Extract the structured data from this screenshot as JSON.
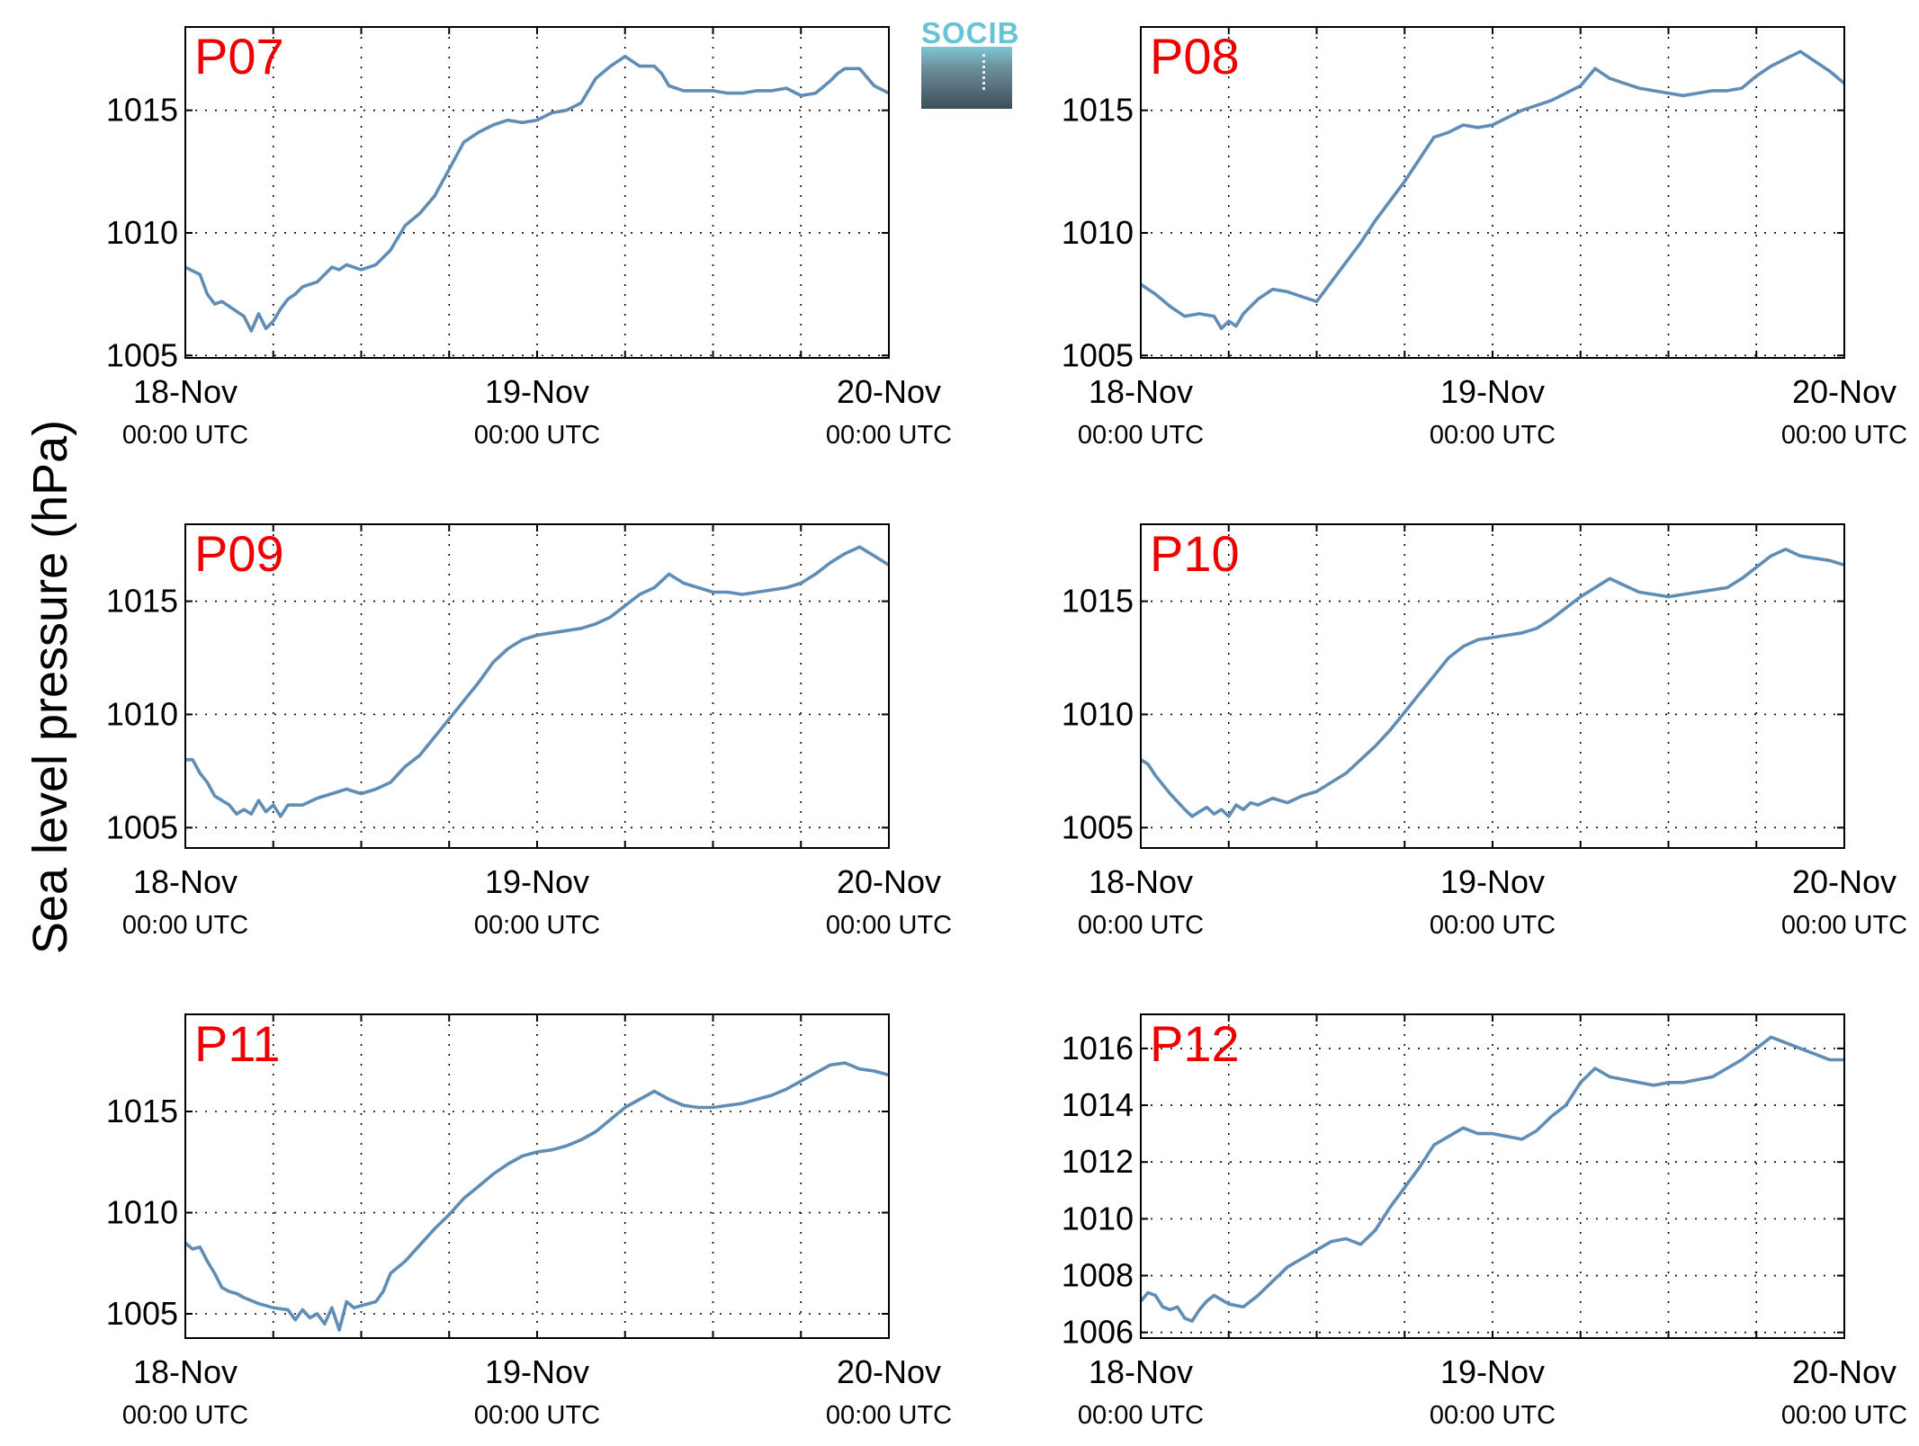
{
  "figure": {
    "ylabel": "Sea level pressure (hPa)",
    "logo_text": "SOCIB",
    "line_color": "#5f8db5",
    "title_color": "#ee0000"
  },
  "chart_data": [
    {
      "type": "line",
      "title": "P07",
      "xlabel": "",
      "ylabel": "Sea level pressure (hPa)",
      "x_unit": "hours since 18-Nov 00:00 UTC",
      "xlim": [
        0,
        48
      ],
      "xticks": [
        0,
        24,
        48
      ],
      "xticklabels": [
        [
          "18-Nov",
          "00:00 UTC"
        ],
        [
          "19-Nov",
          "00:00 UTC"
        ],
        [
          "20-Nov",
          "00:00 UTC"
        ]
      ],
      "ylim": [
        1004.9,
        1018.4
      ],
      "yticks": [
        1005,
        1010,
        1015
      ],
      "grid": true,
      "series": [
        {
          "x": [
            0,
            1,
            1.5,
            2,
            2.5,
            3,
            3.5,
            4,
            4.5,
            5,
            5.5,
            6,
            6.5,
            7,
            7.5,
            8,
            9,
            10,
            10.5,
            11,
            12,
            13,
            14,
            15,
            16,
            17,
            18,
            19,
            20,
            21,
            22,
            23,
            24,
            25,
            26,
            27,
            28,
            29,
            30,
            31,
            32,
            32.5,
            33,
            34,
            35,
            36,
            37,
            38,
            39,
            40,
            41,
            42,
            43,
            44,
            44.5,
            45,
            46,
            47,
            48
          ],
          "y": [
            1008.6,
            1008.3,
            1007.5,
            1007.1,
            1007.2,
            1007.0,
            1006.8,
            1006.6,
            1006.0,
            1006.7,
            1006.1,
            1006.4,
            1006.9,
            1007.3,
            1007.5,
            1007.8,
            1008.0,
            1008.6,
            1008.5,
            1008.7,
            1008.5,
            1008.7,
            1009.3,
            1010.3,
            1010.8,
            1011.5,
            1012.6,
            1013.7,
            1014.1,
            1014.4,
            1014.6,
            1014.5,
            1014.6,
            1014.9,
            1015.0,
            1015.3,
            1016.3,
            1016.8,
            1017.2,
            1016.8,
            1016.8,
            1016.5,
            1016.0,
            1015.8,
            1015.8,
            1015.8,
            1015.7,
            1015.7,
            1015.8,
            1015.8,
            1015.9,
            1015.6,
            1015.7,
            1016.2,
            1016.5,
            1016.7,
            1016.7,
            1016.0,
            1015.7
          ]
        }
      ]
    },
    {
      "type": "line",
      "title": "P08",
      "xlabel": "",
      "ylabel": "Sea level pressure (hPa)",
      "x_unit": "hours since 18-Nov 00:00 UTC",
      "xlim": [
        0,
        48
      ],
      "xticks": [
        0,
        24,
        48
      ],
      "xticklabels": [
        [
          "18-Nov",
          "00:00 UTC"
        ],
        [
          "19-Nov",
          "00:00 UTC"
        ],
        [
          "20-Nov",
          "00:00 UTC"
        ]
      ],
      "ylim": [
        1004.9,
        1018.4
      ],
      "yticks": [
        1005,
        1010,
        1015
      ],
      "grid": true,
      "series": [
        {
          "x": [
            0,
            1,
            2,
            3,
            4,
            5,
            5.5,
            6,
            6.5,
            7,
            8,
            9,
            10,
            11,
            12,
            13,
            14,
            15,
            16,
            17,
            18,
            19,
            20,
            21,
            22,
            23,
            24,
            25,
            26,
            27,
            28,
            29,
            30,
            31,
            32,
            33,
            34,
            35,
            36,
            37,
            38,
            39,
            40,
            41,
            42,
            43,
            44,
            45,
            46,
            47,
            48
          ],
          "y": [
            1007.9,
            1007.5,
            1007.0,
            1006.6,
            1006.7,
            1006.6,
            1006.1,
            1006.4,
            1006.2,
            1006.7,
            1007.3,
            1007.7,
            1007.6,
            1007.4,
            1007.2,
            1008.0,
            1008.8,
            1009.6,
            1010.5,
            1011.3,
            1012.1,
            1013.0,
            1013.9,
            1014.1,
            1014.4,
            1014.3,
            1014.4,
            1014.7,
            1015.0,
            1015.2,
            1015.4,
            1015.7,
            1016.0,
            1016.7,
            1016.3,
            1016.1,
            1015.9,
            1015.8,
            1015.7,
            1015.6,
            1015.7,
            1015.8,
            1015.8,
            1015.9,
            1016.4,
            1016.8,
            1017.1,
            1017.4,
            1017.0,
            1016.6,
            1016.1
          ]
        }
      ]
    },
    {
      "type": "line",
      "title": "P09",
      "xlabel": "",
      "ylabel": "Sea level pressure (hPa)",
      "x_unit": "hours since 18-Nov 00:00 UTC",
      "xlim": [
        0,
        48
      ],
      "xticks": [
        0,
        24,
        48
      ],
      "xticklabels": [
        [
          "18-Nov",
          "00:00 UTC"
        ],
        [
          "19-Nov",
          "00:00 UTC"
        ],
        [
          "20-Nov",
          "00:00 UTC"
        ]
      ],
      "ylim": [
        1004.1,
        1018.4
      ],
      "yticks": [
        1005,
        1010,
        1015
      ],
      "grid": true,
      "series": [
        {
          "x": [
            0,
            0.5,
            1,
            1.5,
            2,
            3,
            3.5,
            4,
            4.5,
            5,
            5.5,
            6,
            6.5,
            7,
            8,
            9,
            10,
            11,
            12,
            13,
            14,
            15,
            16,
            17,
            18,
            19,
            20,
            21,
            22,
            23,
            24,
            25,
            26,
            27,
            28,
            29,
            30,
            31,
            32,
            33,
            34,
            35,
            36,
            37,
            38,
            39,
            40,
            41,
            42,
            43,
            44,
            45,
            46,
            47,
            48
          ],
          "y": [
            1008.0,
            1008.0,
            1007.4,
            1007.0,
            1006.4,
            1006.0,
            1005.6,
            1005.8,
            1005.6,
            1006.2,
            1005.7,
            1006.0,
            1005.5,
            1006.0,
            1006.0,
            1006.3,
            1006.5,
            1006.7,
            1006.5,
            1006.7,
            1007.0,
            1007.7,
            1008.2,
            1009.0,
            1009.8,
            1010.6,
            1011.4,
            1012.3,
            1012.9,
            1013.3,
            1013.5,
            1013.6,
            1013.7,
            1013.8,
            1014.0,
            1014.3,
            1014.8,
            1015.3,
            1015.6,
            1016.2,
            1015.8,
            1015.6,
            1015.4,
            1015.4,
            1015.3,
            1015.4,
            1015.5,
            1015.6,
            1015.8,
            1016.2,
            1016.7,
            1017.1,
            1017.4,
            1017.0,
            1016.6
          ]
        }
      ]
    },
    {
      "type": "line",
      "title": "P10",
      "xlabel": "",
      "ylabel": "Sea level pressure (hPa)",
      "x_unit": "hours since 18-Nov 00:00 UTC",
      "xlim": [
        0,
        48
      ],
      "xticks": [
        0,
        24,
        48
      ],
      "xticklabels": [
        [
          "18-Nov",
          "00:00 UTC"
        ],
        [
          "19-Nov",
          "00:00 UTC"
        ],
        [
          "20-Nov",
          "00:00 UTC"
        ]
      ],
      "ylim": [
        1004.1,
        1018.4
      ],
      "yticks": [
        1005,
        1010,
        1015
      ],
      "grid": true,
      "series": [
        {
          "x": [
            0,
            0.5,
            1,
            1.5,
            2,
            3,
            3.5,
            4,
            4.5,
            5,
            5.5,
            6,
            6.5,
            7,
            7.5,
            8,
            9,
            10,
            11,
            12,
            13,
            14,
            15,
            16,
            17,
            18,
            19,
            20,
            21,
            22,
            23,
            24,
            25,
            26,
            27,
            28,
            29,
            30,
            31,
            32,
            33,
            34,
            35,
            36,
            37,
            38,
            39,
            40,
            41,
            42,
            43,
            44,
            45,
            46,
            47,
            48
          ],
          "y": [
            1008.0,
            1007.8,
            1007.3,
            1006.9,
            1006.5,
            1005.8,
            1005.5,
            1005.7,
            1005.9,
            1005.6,
            1005.8,
            1005.5,
            1006.0,
            1005.8,
            1006.1,
            1006.0,
            1006.3,
            1006.1,
            1006.4,
            1006.6,
            1007.0,
            1007.4,
            1008.0,
            1008.6,
            1009.3,
            1010.1,
            1010.9,
            1011.7,
            1012.5,
            1013.0,
            1013.3,
            1013.4,
            1013.5,
            1013.6,
            1013.8,
            1014.2,
            1014.7,
            1015.2,
            1015.6,
            1016.0,
            1015.7,
            1015.4,
            1015.3,
            1015.2,
            1015.3,
            1015.4,
            1015.5,
            1015.6,
            1016.0,
            1016.5,
            1017.0,
            1017.3,
            1017.0,
            1016.9,
            1016.8,
            1016.6
          ]
        }
      ]
    },
    {
      "type": "line",
      "title": "P11",
      "xlabel": "",
      "ylabel": "Sea level pressure (hPa)",
      "x_unit": "hours since 18-Nov 00:00 UTC",
      "xlim": [
        0,
        48
      ],
      "xticks": [
        0,
        24,
        48
      ],
      "xticklabels": [
        [
          "18-Nov",
          "00:00 UTC"
        ],
        [
          "19-Nov",
          "00:00 UTC"
        ],
        [
          "20-Nov",
          "00:00 UTC"
        ]
      ],
      "ylim": [
        1003.8,
        1019.8
      ],
      "yticks": [
        1005,
        1010,
        1015
      ],
      "grid": true,
      "series": [
        {
          "x": [
            0,
            0.5,
            1,
            1.5,
            2,
            2.5,
            3,
            3.5,
            4,
            5,
            6,
            7,
            7.5,
            8,
            8.5,
            9,
            9.5,
            10,
            10.5,
            11,
            11.5,
            12,
            13,
            13.5,
            14,
            15,
            16,
            17,
            18,
            19,
            20,
            21,
            22,
            23,
            24,
            25,
            26,
            27,
            28,
            29,
            30,
            31,
            32,
            33,
            34,
            35,
            36,
            37,
            38,
            39,
            40,
            41,
            42,
            43,
            44,
            45,
            46,
            47,
            48
          ],
          "y": [
            1008.5,
            1008.2,
            1008.3,
            1007.6,
            1007.0,
            1006.3,
            1006.1,
            1006.0,
            1005.8,
            1005.5,
            1005.3,
            1005.2,
            1004.7,
            1005.2,
            1004.8,
            1005.0,
            1004.5,
            1005.3,
            1004.2,
            1005.6,
            1005.3,
            1005.4,
            1005.6,
            1006.1,
            1007.0,
            1007.6,
            1008.4,
            1009.2,
            1009.9,
            1010.7,
            1011.3,
            1011.9,
            1012.4,
            1012.8,
            1013.0,
            1013.1,
            1013.3,
            1013.6,
            1014.0,
            1014.6,
            1015.2,
            1015.6,
            1016.0,
            1015.6,
            1015.3,
            1015.2,
            1015.2,
            1015.3,
            1015.4,
            1015.6,
            1015.8,
            1016.1,
            1016.5,
            1016.9,
            1017.3,
            1017.4,
            1017.1,
            1017.0,
            1016.8
          ]
        }
      ]
    },
    {
      "type": "line",
      "title": "P12",
      "xlabel": "",
      "ylabel": "Sea level pressure (hPa)",
      "x_unit": "hours since 18-Nov 00:00 UTC",
      "xlim": [
        0,
        48
      ],
      "xticks": [
        0,
        24,
        48
      ],
      "xticklabels": [
        [
          "18-Nov",
          "00:00 UTC"
        ],
        [
          "19-Nov",
          "00:00 UTC"
        ],
        [
          "20-Nov",
          "00:00 UTC"
        ]
      ],
      "ylim": [
        1005.8,
        1017.2
      ],
      "yticks": [
        1006,
        1008,
        1010,
        1012,
        1014,
        1016
      ],
      "grid": true,
      "series": [
        {
          "x": [
            0,
            0.5,
            1,
            1.5,
            2,
            2.5,
            3,
            3.5,
            4,
            4.5,
            5,
            6,
            7,
            8,
            9,
            10,
            11,
            12,
            13,
            14,
            15,
            16,
            17,
            18,
            19,
            20,
            21,
            22,
            23,
            24,
            25,
            26,
            27,
            28,
            29,
            30,
            31,
            32,
            33,
            34,
            35,
            36,
            37,
            38,
            39,
            40,
            41,
            42,
            43,
            44,
            45,
            46,
            47,
            48
          ],
          "y": [
            1007.1,
            1007.4,
            1007.3,
            1006.9,
            1006.8,
            1006.9,
            1006.5,
            1006.4,
            1006.8,
            1007.1,
            1007.3,
            1007.0,
            1006.9,
            1007.3,
            1007.8,
            1008.3,
            1008.6,
            1008.9,
            1009.2,
            1009.3,
            1009.1,
            1009.6,
            1010.4,
            1011.1,
            1011.8,
            1012.6,
            1012.9,
            1013.2,
            1013.0,
            1013.0,
            1012.9,
            1012.8,
            1013.1,
            1013.6,
            1014.0,
            1014.8,
            1015.3,
            1015.0,
            1014.9,
            1014.8,
            1014.7,
            1014.8,
            1014.8,
            1014.9,
            1015.0,
            1015.3,
            1015.6,
            1016.0,
            1016.4,
            1016.2,
            1016.0,
            1015.8,
            1015.6,
            1015.6
          ]
        }
      ]
    }
  ]
}
